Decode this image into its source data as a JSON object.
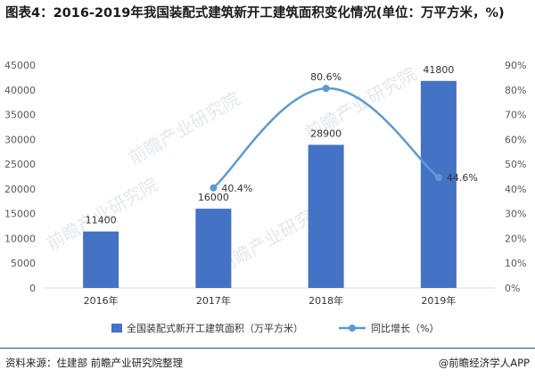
{
  "title": "图表4：2016-2019年我国装配式建筑新开工建筑面积变化情况(单位：万平方米，%)",
  "source": "资料来源：住建部 前瞻产业研究院整理",
  "brand": "@前瞻经济学人APP",
  "watermark": "前瞻产业研究院",
  "colors": {
    "bar": "#4472c4",
    "line": "#5b9bd5",
    "rule": "#1f4e79"
  },
  "chart_data": {
    "type": "bar",
    "categories": [
      "2016年",
      "2017年",
      "2018年",
      "2019年"
    ],
    "series": [
      {
        "name": "全国装配式新开工建筑面积（万平方米）",
        "type": "bar",
        "axis": "left",
        "values": [
          11400,
          16000,
          28900,
          41800
        ],
        "labels": [
          "11400",
          "16000",
          "28900",
          "41800"
        ]
      },
      {
        "name": "同比增长（%）",
        "type": "line",
        "axis": "right",
        "values": [
          null,
          40.4,
          80.6,
          44.6
        ],
        "labels": [
          "",
          "40.4%",
          "80.6%",
          "44.6%"
        ]
      }
    ],
    "y_left": {
      "min": 0,
      "max": 45000,
      "ticks": [
        "0",
        "5000",
        "10000",
        "15000",
        "20000",
        "25000",
        "30000",
        "35000",
        "40000",
        "45000"
      ]
    },
    "y_right": {
      "min": 0,
      "max": 90,
      "ticks": [
        "0%",
        "10%",
        "20%",
        "30%",
        "40%",
        "50%",
        "60%",
        "70%",
        "80%",
        "90%"
      ]
    },
    "grid": false,
    "legend_position": "bottom"
  }
}
